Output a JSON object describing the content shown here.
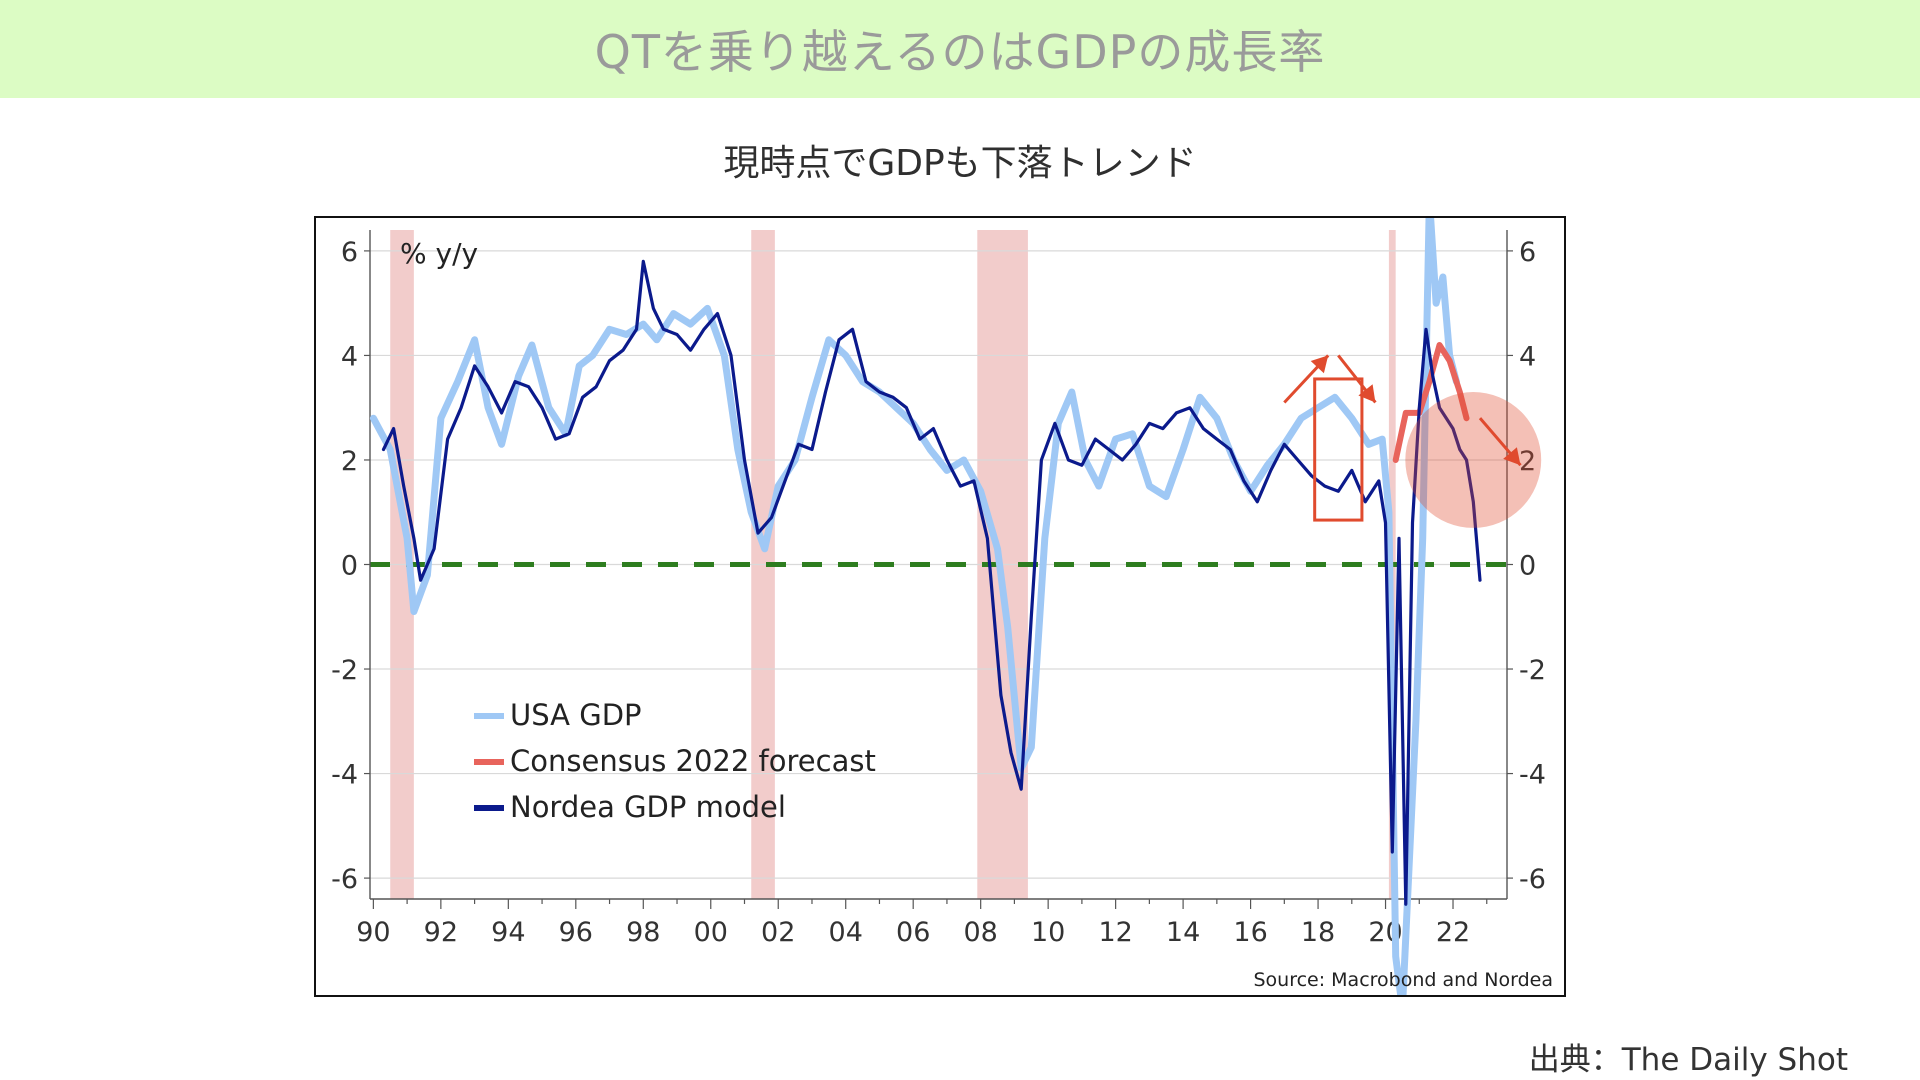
{
  "header": {
    "title": "QTを乗り越えるのはGDPの成長率",
    "subtitle": "現時点でGDPも下落トレンド"
  },
  "footer": {
    "credit": "出典：The Daily Shot"
  },
  "colors": {
    "banner_bg": "#dcfcc4",
    "usa": "#9fc8f5",
    "forecast": "#e8645c",
    "nordea": "#0b1a8c",
    "zero_line": "#2e7d1f",
    "recession": "#f2cccb",
    "annotation": "#e04b2e"
  },
  "chart_data": {
    "type": "line",
    "unit_label": "% y/y",
    "source": "Source: Macrobond and Nordea",
    "x_tick_labels": [
      "90",
      "92",
      "94",
      "96",
      "98",
      "00",
      "02",
      "04",
      "06",
      "08",
      "10",
      "12",
      "14",
      "16",
      "18",
      "20",
      "22"
    ],
    "x_tick_years": [
      1990,
      1992,
      1994,
      1996,
      1998,
      2000,
      2002,
      2004,
      2006,
      2008,
      2010,
      2012,
      2014,
      2016,
      2018,
      2020,
      2022
    ],
    "xlim": [
      1989.9,
      2023.6
    ],
    "ylim": [
      -6.4,
      6.4
    ],
    "y_ticks": [
      -6,
      -4,
      -2,
      0,
      2,
      4,
      6
    ],
    "y_tick_labels": [
      "-6",
      "-4",
      "-2",
      "0",
      "2",
      "4",
      "6"
    ],
    "grid": "horizontal",
    "legend_position": "bottom-left",
    "recessions": [
      [
        1990.5,
        1991.2
      ],
      [
        2001.2,
        2001.9
      ],
      [
        2007.9,
        2009.4
      ],
      [
        2020.1,
        2020.3
      ]
    ],
    "zero_line": {
      "y": 0,
      "style": "dashed"
    },
    "series": [
      {
        "name": "USA GDP",
        "x": [
          1990.0,
          1990.5,
          1991.0,
          1991.2,
          1991.6,
          1992.0,
          1992.5,
          1993.0,
          1993.4,
          1993.8,
          1994.3,
          1994.7,
          1995.2,
          1995.7,
          1996.1,
          1996.5,
          1997.0,
          1997.5,
          1998.0,
          1998.4,
          1998.9,
          1999.4,
          1999.9,
          2000.4,
          2000.8,
          2001.2,
          2001.6,
          2002.0,
          2002.5,
          2003.0,
          2003.5,
          2004.0,
          2004.5,
          2005.0,
          2005.5,
          2006.0,
          2006.5,
          2007.0,
          2007.5,
          2008.0,
          2008.5,
          2008.8,
          2009.2,
          2009.5,
          2009.9,
          2010.3,
          2010.7,
          2011.1,
          2011.5,
          2012.0,
          2012.5,
          2013.0,
          2013.5,
          2014.0,
          2014.5,
          2015.0,
          2015.5,
          2016.0,
          2016.5,
          2017.0,
          2017.5,
          2018.0,
          2018.5,
          2019.0,
          2019.5,
          2019.9,
          2020.1,
          2020.3,
          2020.5,
          2020.9,
          2021.1,
          2021.3,
          2021.5,
          2021.7,
          2021.9,
          2022.1
        ],
        "values": [
          2.8,
          2.2,
          0.5,
          -0.9,
          -0.2,
          2.8,
          3.5,
          4.3,
          3.0,
          2.3,
          3.6,
          4.2,
          3.0,
          2.5,
          3.8,
          4.0,
          4.5,
          4.4,
          4.6,
          4.3,
          4.8,
          4.6,
          4.9,
          4.0,
          2.2,
          1.0,
          0.3,
          1.5,
          2.0,
          3.2,
          4.3,
          4.0,
          3.5,
          3.3,
          3.0,
          2.7,
          2.2,
          1.8,
          2.0,
          1.4,
          0.3,
          -1.2,
          -3.9,
          -3.5,
          0.5,
          2.7,
          3.3,
          2.0,
          1.5,
          2.4,
          2.5,
          1.5,
          1.3,
          2.2,
          3.2,
          2.8,
          2.0,
          1.4,
          1.9,
          2.3,
          2.8,
          3.0,
          3.2,
          2.8,
          2.3,
          2.4,
          1.0,
          -7.5,
          -8.5,
          -3.0,
          0.5,
          7.0,
          5.0,
          5.5,
          4.0,
          3.5
        ]
      },
      {
        "name": "Consensus 2022 forecast",
        "x": [
          2020.3,
          2020.6,
          2021.0,
          2021.3,
          2021.6,
          2021.9,
          2022.2,
          2022.4
        ],
        "values": [
          2.0,
          2.9,
          2.9,
          3.5,
          4.2,
          3.9,
          3.3,
          2.8
        ]
      },
      {
        "name": "Nordea GDP model",
        "x": [
          1990.3,
          1990.6,
          1990.9,
          1991.2,
          1991.4,
          1991.8,
          1992.2,
          1992.6,
          1993.0,
          1993.4,
          1993.8,
          1994.2,
          1994.6,
          1995.0,
          1995.4,
          1995.8,
          1996.2,
          1996.6,
          1997.0,
          1997.4,
          1997.8,
          1998.0,
          1998.3,
          1998.6,
          1999.0,
          1999.4,
          1999.8,
          2000.2,
          2000.6,
          2001.0,
          2001.4,
          2001.8,
          2002.2,
          2002.6,
          2003.0,
          2003.4,
          2003.8,
          2004.2,
          2004.6,
          2005.0,
          2005.4,
          2005.8,
          2006.2,
          2006.6,
          2007.0,
          2007.4,
          2007.8,
          2008.2,
          2008.6,
          2008.9,
          2009.2,
          2009.5,
          2009.8,
          2010.2,
          2010.6,
          2011.0,
          2011.4,
          2011.8,
          2012.2,
          2012.6,
          2013.0,
          2013.4,
          2013.8,
          2014.2,
          2014.6,
          2015.0,
          2015.4,
          2015.8,
          2016.2,
          2016.6,
          2017.0,
          2017.4,
          2017.8,
          2018.2,
          2018.6,
          2019.0,
          2019.4,
          2019.8,
          2020.0,
          2020.2,
          2020.4,
          2020.6,
          2020.8,
          2021.0,
          2021.2,
          2021.4,
          2021.6,
          2021.8,
          2022.0,
          2022.2,
          2022.4,
          2022.6,
          2022.8
        ],
        "values": [
          2.2,
          2.6,
          1.5,
          0.5,
          -0.3,
          0.3,
          2.4,
          3.0,
          3.8,
          3.4,
          2.9,
          3.5,
          3.4,
          3.0,
          2.4,
          2.5,
          3.2,
          3.4,
          3.9,
          4.1,
          4.5,
          5.8,
          4.9,
          4.5,
          4.4,
          4.1,
          4.5,
          4.8,
          4.0,
          2.0,
          0.6,
          0.9,
          1.6,
          2.3,
          2.2,
          3.3,
          4.3,
          4.5,
          3.5,
          3.3,
          3.2,
          3.0,
          2.4,
          2.6,
          2.0,
          1.5,
          1.6,
          0.5,
          -2.5,
          -3.6,
          -4.3,
          -1.0,
          2.0,
          2.7,
          2.0,
          1.9,
          2.4,
          2.2,
          2.0,
          2.3,
          2.7,
          2.6,
          2.9,
          3.0,
          2.6,
          2.4,
          2.2,
          1.6,
          1.2,
          1.8,
          2.3,
          2.0,
          1.7,
          1.5,
          1.4,
          1.8,
          1.2,
          1.6,
          0.8,
          -5.5,
          0.5,
          -6.5,
          0.8,
          3.0,
          4.5,
          3.6,
          3.0,
          2.8,
          2.6,
          2.2,
          2.0,
          1.2,
          -0.3
        ]
      }
    ],
    "annotations": [
      {
        "type": "rectangle",
        "x": [
          2017.9,
          2019.3
        ],
        "y": [
          0.85,
          3.55
        ]
      },
      {
        "type": "arrow",
        "from": [
          2017.0,
          3.1
        ],
        "to": [
          2018.3,
          4.0
        ]
      },
      {
        "type": "arrow",
        "from": [
          2018.6,
          4.0
        ],
        "to": [
          2019.7,
          3.1
        ]
      },
      {
        "type": "arrow",
        "from": [
          2022.8,
          2.8
        ],
        "to": [
          2024.0,
          1.9
        ]
      },
      {
        "type": "circle",
        "center": [
          2022.6,
          2.0
        ],
        "radius_y": 1.3
      }
    ]
  }
}
